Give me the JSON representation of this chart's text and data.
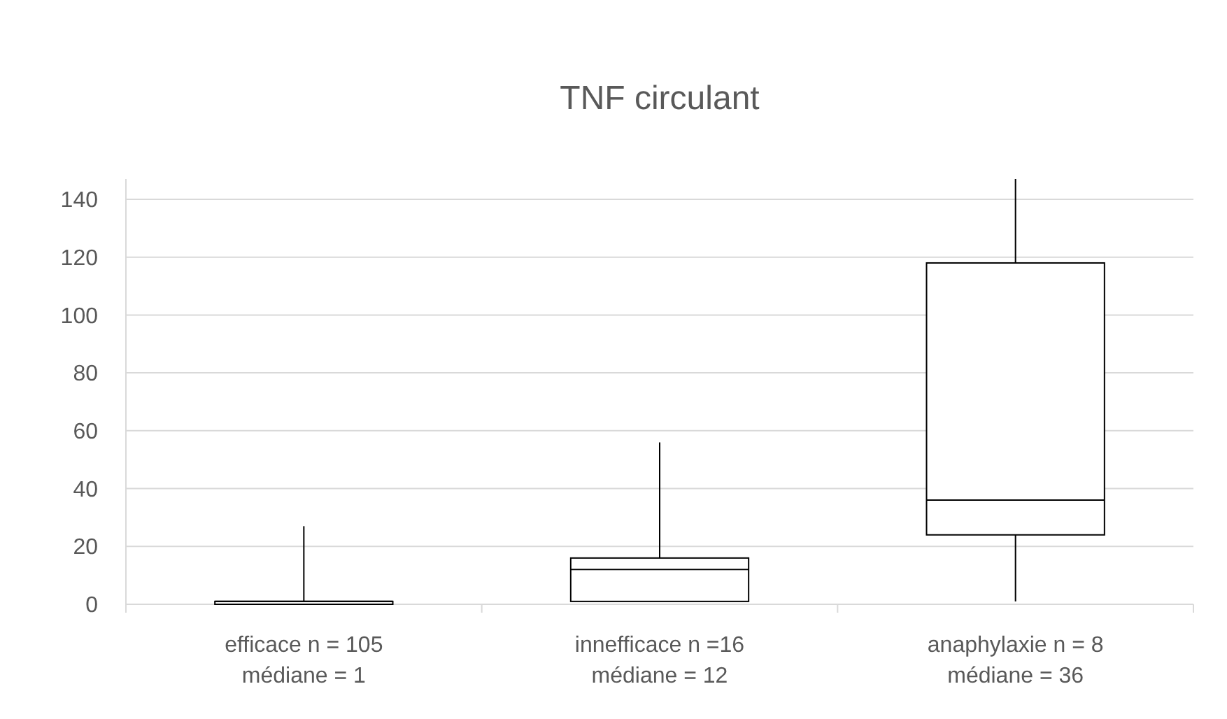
{
  "chart_data": {
    "type": "box",
    "title": "TNF circulant",
    "categories": [
      "efficace n = 105\nmédiane = 1",
      "innefficace n =16\nmédiane = 12",
      "anaphylaxie n = 8\nmédiane = 36"
    ],
    "boxes": [
      {
        "low": 0,
        "q1": 0,
        "median": 1,
        "q3": 1,
        "high": 27
      },
      {
        "low": 1,
        "q1": 1,
        "median": 12,
        "q3": 16,
        "high": 56
      },
      {
        "low": 1,
        "q1": 24,
        "median": 36,
        "q3": 118,
        "high": 147
      }
    ],
    "ylim": [
      0,
      147
    ],
    "yticks": [
      0,
      20,
      40,
      60,
      80,
      100,
      120,
      140
    ],
    "grid": "y"
  }
}
